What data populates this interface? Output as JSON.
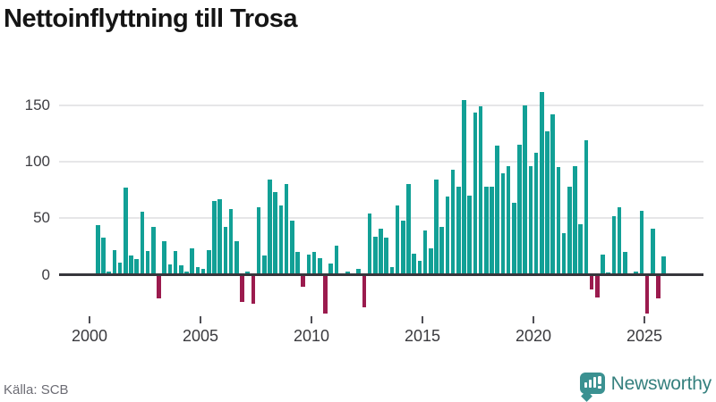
{
  "title": "Nettoinflyttning till Trosa",
  "source": "Källa: SCB",
  "branding": {
    "logo_text": "Newsworthy"
  },
  "colors": {
    "positive_bar": "#12a096",
    "negative_bar": "#9b1b4e",
    "gridline": "#e6e6e8",
    "zero_axis": "#36363c",
    "brand_teal": "#3b9191",
    "brand_text": "#35807e",
    "title_text": "#151515",
    "tick_text": "#3a3a3e",
    "source_text": "#6c6c74"
  },
  "chart_data": {
    "type": "bar",
    "title": "Nettoinflyttning till Trosa",
    "frequency": "quarterly",
    "start_period": "2000Q2",
    "end_period": "2025Q4",
    "x": [
      "2000Q2",
      "2000Q3",
      "2000Q4",
      "2001Q1",
      "2001Q2",
      "2001Q3",
      "2001Q4",
      "2002Q1",
      "2002Q2",
      "2002Q3",
      "2002Q4",
      "2003Q1",
      "2003Q2",
      "2003Q3",
      "2003Q4",
      "2004Q1",
      "2004Q2",
      "2004Q3",
      "2004Q4",
      "2005Q1",
      "2005Q2",
      "2005Q3",
      "2005Q4",
      "2006Q1",
      "2006Q2",
      "2006Q3",
      "2006Q4",
      "2007Q1",
      "2007Q2",
      "2007Q3",
      "2007Q4",
      "2008Q1",
      "2008Q2",
      "2008Q3",
      "2008Q4",
      "2009Q1",
      "2009Q2",
      "2009Q3",
      "2009Q4",
      "2010Q1",
      "2010Q2",
      "2010Q3",
      "2010Q4",
      "2011Q1",
      "2011Q2",
      "2011Q3",
      "2011Q4",
      "2012Q1",
      "2012Q2",
      "2012Q3",
      "2012Q4",
      "2013Q1",
      "2013Q2",
      "2013Q3",
      "2013Q4",
      "2014Q1",
      "2014Q2",
      "2014Q3",
      "2014Q4",
      "2015Q1",
      "2015Q2",
      "2015Q3",
      "2015Q4",
      "2016Q1",
      "2016Q2",
      "2016Q3",
      "2016Q4",
      "2017Q1",
      "2017Q2",
      "2017Q3",
      "2017Q4",
      "2018Q1",
      "2018Q2",
      "2018Q3",
      "2018Q4",
      "2019Q1",
      "2019Q2",
      "2019Q3",
      "2019Q4",
      "2020Q1",
      "2020Q2",
      "2020Q3",
      "2020Q4",
      "2021Q1",
      "2021Q2",
      "2021Q3",
      "2021Q4",
      "2022Q1",
      "2022Q2",
      "2022Q3",
      "2022Q4",
      "2023Q1",
      "2023Q2",
      "2023Q3",
      "2023Q4",
      "2024Q1",
      "2024Q2",
      "2024Q3",
      "2024Q4",
      "2025Q1",
      "2025Q2",
      "2025Q3",
      "2025Q4"
    ],
    "values": [
      44,
      33,
      3,
      22,
      11,
      77,
      17,
      14,
      56,
      21,
      42,
      -21,
      30,
      9,
      21,
      8,
      3,
      23,
      7,
      5,
      22,
      65,
      67,
      42,
      58,
      30,
      -24,
      3,
      -26,
      60,
      17,
      84,
      73,
      61,
      80,
      48,
      20,
      -11,
      18,
      20,
      15,
      -34,
      10,
      26,
      0,
      3,
      0,
      5,
      -29,
      54,
      34,
      41,
      33,
      7,
      61,
      48,
      80,
      19,
      12,
      39,
      23,
      84,
      42,
      69,
      93,
      78,
      155,
      70,
      144,
      149,
      78,
      78,
      114,
      90,
      96,
      64,
      115,
      150,
      96,
      108,
      162,
      127,
      142,
      95,
      37,
      78,
      96,
      45,
      119,
      -13,
      -20,
      18,
      2,
      52,
      60,
      20,
      0,
      3,
      57,
      -34,
      41,
      -21,
      16
    ],
    "y_tick_labels": [
      "0",
      "50",
      "100",
      "150"
    ],
    "y_ticks": [
      0,
      50,
      100,
      150
    ],
    "x_tick_labels": [
      "2000",
      "2005",
      "2010",
      "2015",
      "2020",
      "2025"
    ],
    "x_tick_years": [
      2000,
      2005,
      2010,
      2015,
      2020,
      2025
    ],
    "ylim": [
      -45,
      170
    ],
    "grid": true,
    "legend": "none"
  }
}
